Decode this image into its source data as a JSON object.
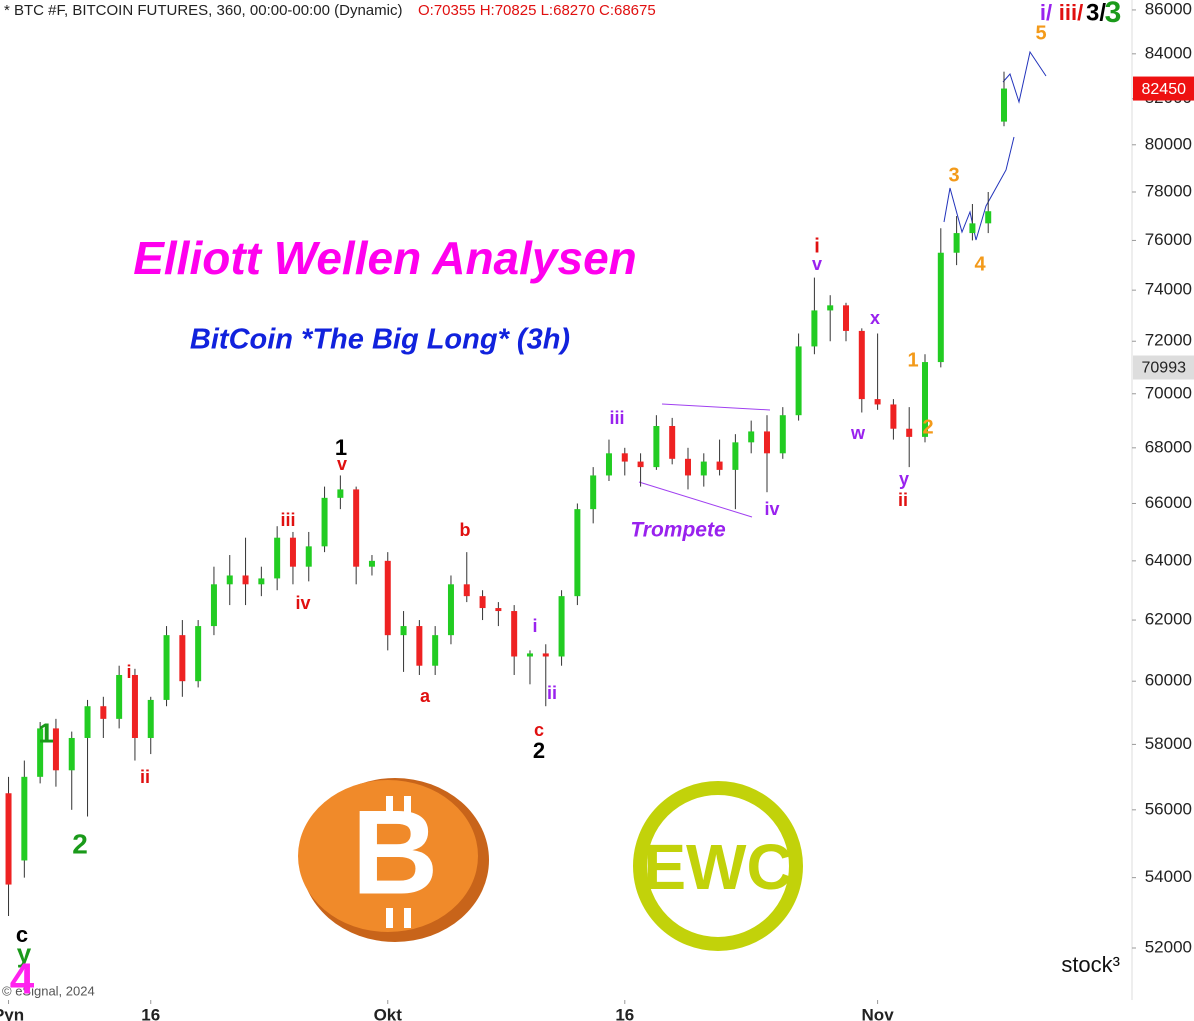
{
  "chart_data": {
    "type": "candlestick",
    "header": "* BTC #F, BITCOIN FUTURES, 360, 00:00-00:00 (Dynamic)",
    "ohlc_header": "O:70355 H:70825 L:68270 C:68675",
    "title": "Elliott Wellen Analysen",
    "subtitle": "BitCoin *The Big Long* (3h)",
    "copyright": "© eSignal, 2024",
    "brand": "stock³",
    "logo_text": "EWC",
    "up_color": "#22cc22",
    "down_color": "#ee2222",
    "log_scale": true,
    "x": [
      7,
      8,
      9,
      10,
      11,
      12,
      13,
      14,
      15,
      16,
      17,
      18,
      19,
      20,
      21,
      22,
      23,
      24,
      25,
      26,
      27,
      28,
      29,
      30,
      31,
      32,
      33,
      34,
      35,
      36,
      37,
      38,
      39,
      40,
      41,
      42,
      43,
      44,
      45,
      46,
      47,
      48,
      49,
      50,
      51,
      52,
      53,
      54,
      55,
      56,
      57,
      58,
      59,
      60,
      61,
      62,
      63,
      64,
      65,
      66,
      67,
      68,
      69,
      70
    ],
    "open": [
      56500,
      54500,
      57000,
      58500,
      57200,
      58200,
      59200,
      58800,
      60200,
      58200,
      59400,
      61500,
      60000,
      61800,
      63200,
      63500,
      63200,
      63400,
      64800,
      63800,
      64500,
      66200,
      66500,
      63800,
      64000,
      61500,
      61800,
      60500,
      61500,
      63200,
      62800,
      62400,
      62300,
      60800,
      60900,
      60800,
      62800,
      65800,
      67000,
      67800,
      67500,
      67300,
      68800,
      67600,
      67000,
      67500,
      67200,
      68200,
      68600,
      67800,
      69200,
      71800,
      73200,
      73400,
      72400,
      69800,
      69600,
      68700,
      68400,
      71200,
      75500,
      76300,
      76700,
      81000
    ],
    "high": [
      57000,
      57500,
      58700,
      58800,
      58400,
      59400,
      59500,
      60500,
      60400,
      59500,
      61800,
      62000,
      62000,
      63800,
      64200,
      64800,
      63800,
      65200,
      65000,
      65000,
      66600,
      67000,
      66600,
      64200,
      64300,
      62300,
      62000,
      61800,
      63500,
      64300,
      63000,
      62600,
      62500,
      61000,
      61200,
      63000,
      66000,
      67300,
      68300,
      68000,
      67800,
      69200,
      69100,
      68000,
      67800,
      68300,
      68500,
      69000,
      69200,
      69500,
      72300,
      74500,
      73800,
      73500,
      72500,
      72300,
      69800,
      69500,
      71500,
      76500,
      77000,
      77500,
      78000,
      83200
    ],
    "low": [
      52900,
      54000,
      56800,
      56700,
      56000,
      55800,
      58200,
      58500,
      57500,
      57700,
      59200,
      59500,
      59800,
      61500,
      62500,
      62500,
      62800,
      63000,
      63200,
      63300,
      64300,
      65800,
      63200,
      63500,
      61000,
      60300,
      60200,
      60200,
      61200,
      62600,
      62000,
      61800,
      60200,
      59900,
      59200,
      60500,
      62500,
      65300,
      66800,
      67000,
      66600,
      67200,
      67400,
      66500,
      66600,
      67000,
      65800,
      67800,
      66400,
      67600,
      69000,
      71500,
      72000,
      72000,
      69300,
      69400,
      68300,
      67300,
      68200,
      71000,
      75000,
      76000,
      76300,
      80800
    ],
    "close": [
      53800,
      57000,
      58500,
      57200,
      58200,
      59200,
      58800,
      60200,
      58200,
      59400,
      61500,
      60000,
      61800,
      63200,
      63500,
      63200,
      63400,
      64800,
      63800,
      64500,
      66200,
      66500,
      63800,
      64000,
      61500,
      61800,
      60500,
      61500,
      63200,
      62800,
      62400,
      62300,
      60800,
      60900,
      60800,
      62800,
      65800,
      67000,
      67800,
      67500,
      67300,
      68800,
      67600,
      67000,
      67500,
      67200,
      68200,
      68600,
      67800,
      69200,
      71800,
      73200,
      73400,
      72400,
      69800,
      69600,
      68700,
      68400,
      71200,
      75500,
      76300,
      76700,
      77200,
      82450
    ],
    "xlim": [
      6.46,
      78.1
    ],
    "xticks": [
      {
        "value": 7,
        "label": "Pyn"
      },
      16,
      {
        "value": 31,
        "label": "Okt"
      },
      {
        "value": 46,
        "label": "16"
      },
      {
        "value": 62,
        "label": "Nov"
      }
    ],
    "ylim": [
      50570,
      86460
    ],
    "yticks": [
      52000,
      54000,
      56000,
      58000,
      60000,
      62000,
      64000,
      66000,
      68000,
      70000,
      72000,
      74000,
      76000,
      78000,
      80000,
      82000,
      84000,
      86000
    ],
    "last_price": 82450,
    "marker_price": 70993,
    "annotations": [
      {
        "text": "1",
        "color": "#1a9a1a"
      },
      {
        "text": "2",
        "color": "#1a9a1a"
      },
      {
        "text": "c",
        "color": "#000000"
      },
      {
        "text": "y",
        "color": "#1a9a1a"
      },
      {
        "text": "4",
        "color": "#ff22ee"
      },
      {
        "text": "i",
        "color": "#e01010"
      },
      {
        "text": "ii",
        "color": "#e01010"
      },
      {
        "text": "iii",
        "color": "#e01010"
      },
      {
        "text": "iv",
        "color": "#e01010"
      },
      {
        "text": "1",
        "color": "#000000"
      },
      {
        "text": "v",
        "color": "#e01010"
      },
      {
        "text": "a",
        "color": "#e01010"
      },
      {
        "text": "b",
        "color": "#e01010"
      },
      {
        "text": "i",
        "color": "#9922ee"
      },
      {
        "text": "ii",
        "color": "#9922ee"
      },
      {
        "text": "c",
        "color": "#e01010"
      },
      {
        "text": "2",
        "color": "#000000"
      },
      {
        "text": "iii",
        "color": "#9922ee"
      },
      {
        "text": "Trompete",
        "color": "#9922ee"
      },
      {
        "text": "iv",
        "color": "#9922ee"
      },
      {
        "text": "i",
        "color": "#e01010"
      },
      {
        "text": "v",
        "color": "#9922ee"
      },
      {
        "text": "x",
        "color": "#9922ee"
      },
      {
        "text": "w",
        "color": "#9922ee"
      },
      {
        "text": "y",
        "color": "#9922ee"
      },
      {
        "text": "ii",
        "color": "#e01010"
      },
      {
        "text": "1",
        "color": "#f39a1a"
      },
      {
        "text": "2",
        "color": "#f39a1a"
      },
      {
        "text": "3",
        "color": "#f39a1a"
      },
      {
        "text": "4",
        "color": "#f39a1a"
      },
      {
        "text": "5",
        "color": "#f39a1a"
      },
      {
        "text": "i/",
        "color": "#9922ee"
      },
      {
        "text": "iii/",
        "color": "#e01010"
      },
      {
        "text": "3/",
        "color": "#000000"
      },
      {
        "text": "3",
        "color": "#1a9a1a"
      }
    ]
  }
}
